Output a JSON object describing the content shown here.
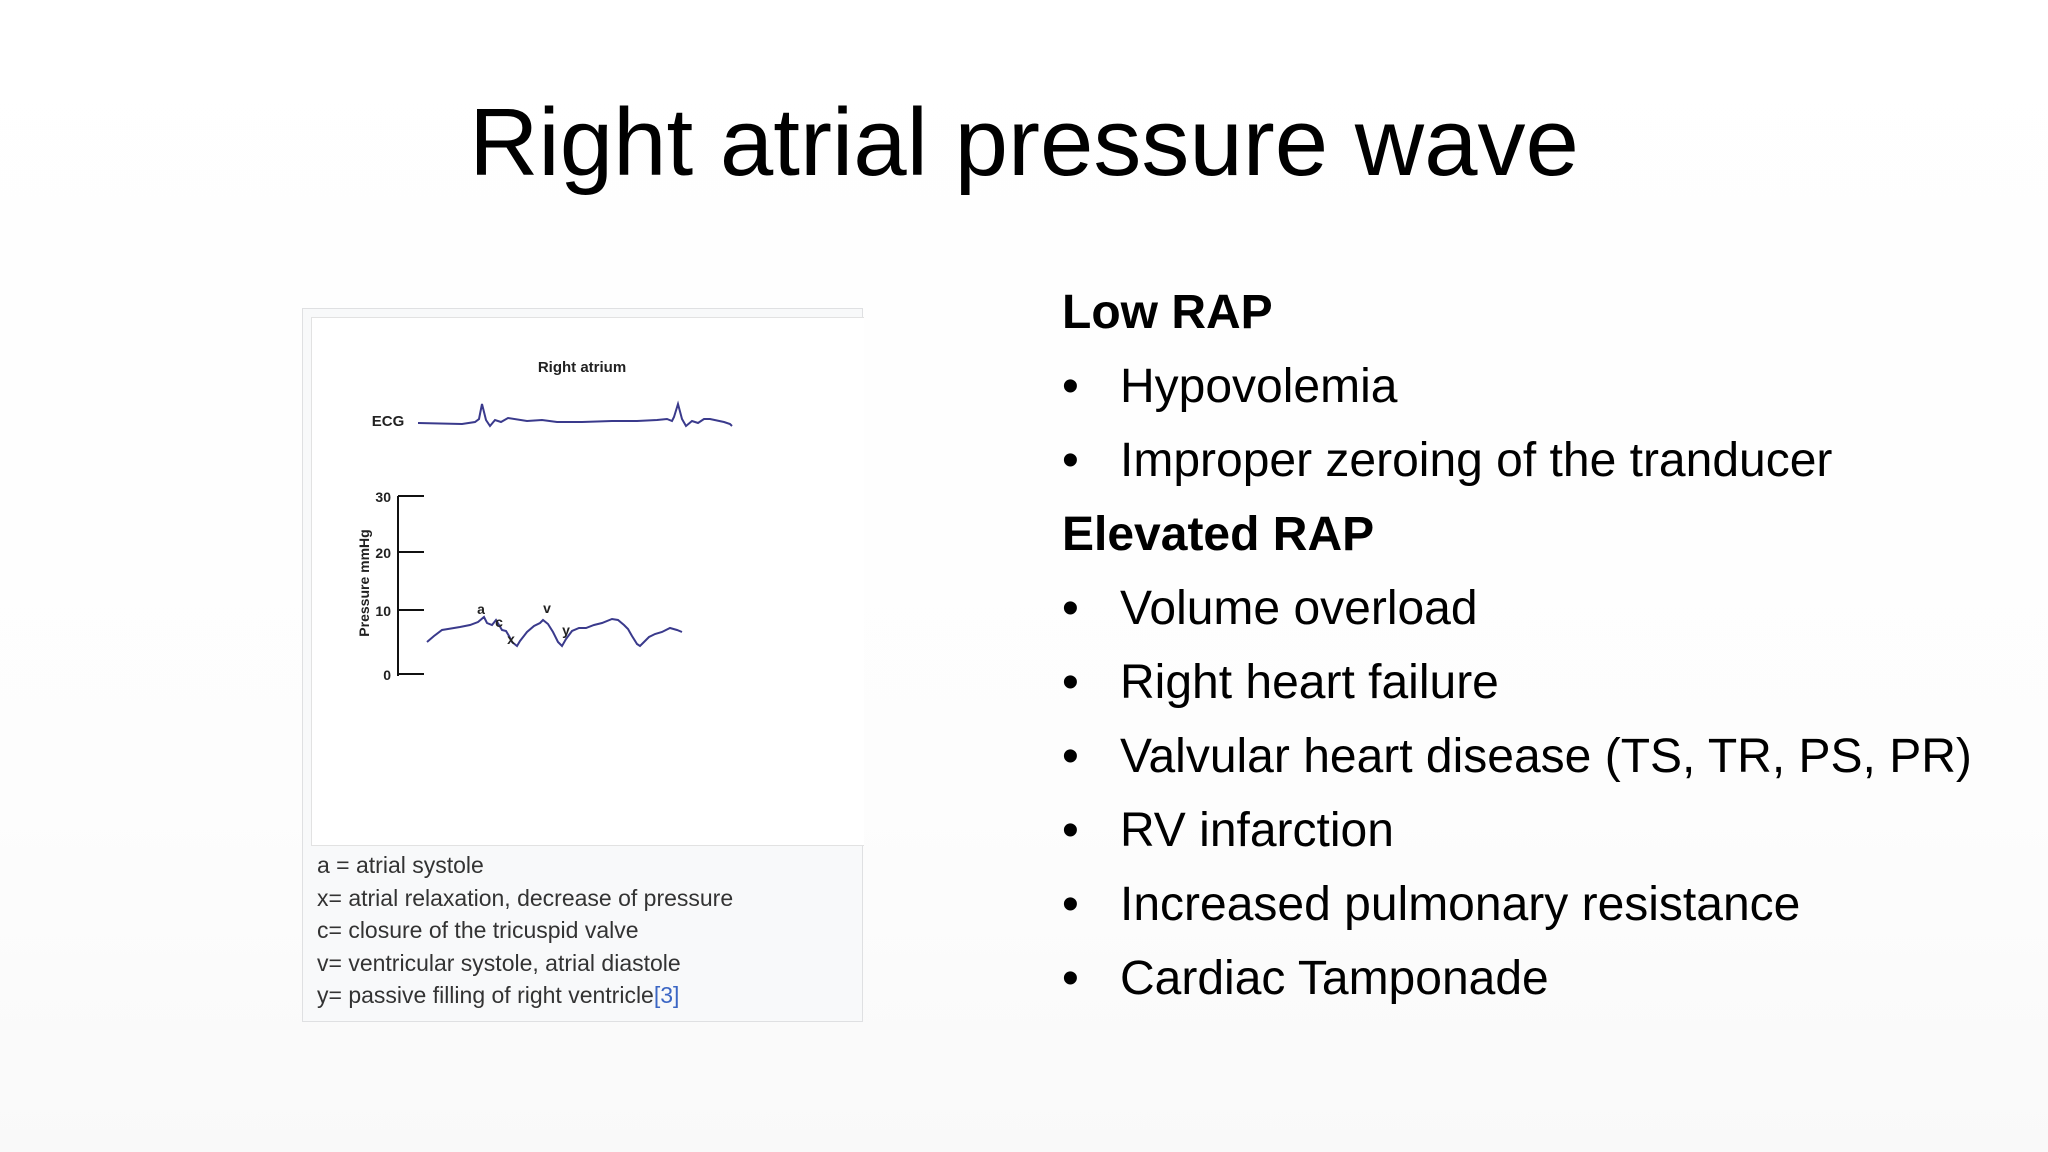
{
  "title": "Right atrial pressure wave",
  "figure": {
    "panel_title": "Right atrium",
    "ecg_label": "ECG",
    "y_axis_label": "Pressure mmHg",
    "y_ticks": [
      "30",
      "20",
      "10",
      "0"
    ],
    "wave_labels": [
      "a",
      "c",
      "x",
      "v",
      "y"
    ],
    "caption": [
      "a = atrial systole",
      "x= atrial relaxation, decrease of pressure",
      "c= closure of the tricuspid valve",
      "v= ventricular systole, atrial diastole"
    ],
    "caption_last": "y= passive filling of right ventricle",
    "caption_ref": "[3]"
  },
  "low_rap": {
    "heading": "Low RAP",
    "items": [
      "Hypovolemia",
      "Improper zeroing of the tranducer"
    ]
  },
  "elevated_rap": {
    "heading": "Elevated RAP",
    "items": [
      "Volume overload",
      "Right heart failure",
      "Valvular heart disease (TS, TR, PS, PR)",
      "RV infarction",
      "Increased pulmonary resistance",
      "Cardiac Tamponade"
    ]
  },
  "bullet_char": "•",
  "colors": {
    "trace": "#3a3a8c",
    "caption_link": "#3b66c4"
  }
}
